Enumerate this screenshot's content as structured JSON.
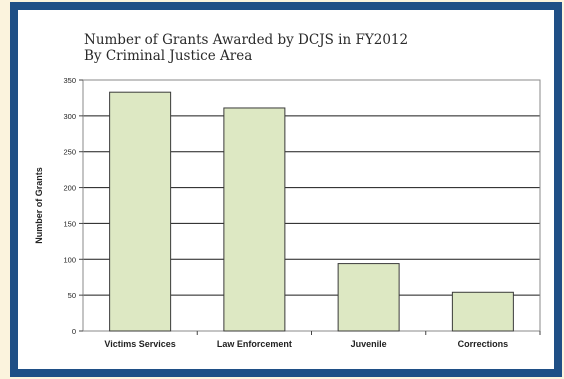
{
  "chart_data": {
    "type": "bar",
    "title": "Number of Grants Awarded by DCJS in FY2012",
    "subtitle": "By Criminal Justice Area",
    "xlabel": "",
    "ylabel": "Number of Grants",
    "categories": [
      "Victims Services",
      "Law Enforcement",
      "Juvenile",
      "Corrections"
    ],
    "values": [
      333,
      311,
      94,
      54
    ],
    "ylim": [
      0,
      350
    ],
    "yticks": [
      0,
      50,
      100,
      150,
      200,
      250,
      300,
      350
    ],
    "grid": true,
    "legend": "none"
  },
  "colors": {
    "bar_fill": "#dde8c3",
    "bar_stroke": "#3a3a3a",
    "frame": "#1f4f86",
    "page_background": "#fbf3dd"
  }
}
